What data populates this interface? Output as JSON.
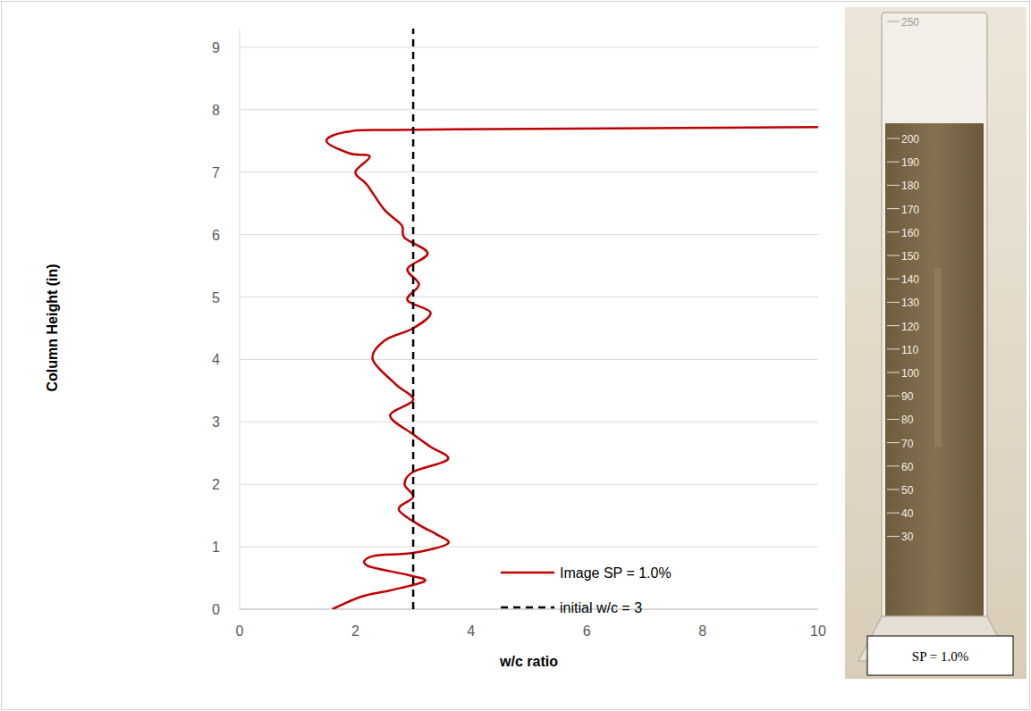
{
  "chart_data": {
    "type": "line",
    "x_label": "w/c ratio",
    "y_label": "Column Height (in)",
    "xlim": [
      0,
      10
    ],
    "xticks": [
      0,
      2,
      4,
      6,
      8,
      10
    ],
    "ylim": [
      0,
      9.3
    ],
    "yticks": [
      0,
      1,
      2,
      3,
      4,
      5,
      6,
      7,
      8,
      9
    ],
    "grid": true,
    "legend": "lower right",
    "series": [
      {
        "name": "Image SP = 1.0%",
        "color": "#c00000",
        "line_style": "solid",
        "x": [
          1.6,
          2.1,
          2.6,
          3.2,
          2.9,
          2.2,
          2.3,
          3.0,
          3.6,
          3.4,
          3.1,
          2.75,
          3.0,
          2.85,
          3.0,
          3.6,
          3.3,
          3.0,
          2.6,
          3.0,
          2.7,
          2.3,
          2.5,
          3.0,
          3.3,
          2.9,
          3.1,
          2.9,
          3.25,
          2.85,
          2.8,
          2.5,
          2.2,
          2.0,
          2.25,
          1.9,
          1.5,
          1.9,
          3.0,
          10
        ],
        "values": [
          0,
          0.2,
          0.3,
          0.45,
          0.55,
          0.7,
          0.85,
          0.9,
          1.05,
          1.2,
          1.35,
          1.6,
          1.8,
          2.0,
          2.2,
          2.4,
          2.6,
          2.8,
          3.1,
          3.35,
          3.6,
          4.0,
          4.3,
          4.5,
          4.75,
          4.95,
          5.2,
          5.45,
          5.7,
          5.95,
          6.15,
          6.4,
          6.8,
          7.0,
          7.25,
          7.3,
          7.5,
          7.65,
          7.68,
          7.72
        ]
      },
      {
        "name": "initial w/c = 3",
        "color": "#000000",
        "line_style": "dashed",
        "x": [
          3,
          3
        ],
        "values": [
          0,
          9.3
        ]
      }
    ]
  },
  "photo": {
    "caption": "SP = 1.0%",
    "graduations": [
      30,
      40,
      50,
      60,
      70,
      80,
      90,
      100,
      110,
      120,
      130,
      140,
      150,
      160,
      170,
      180,
      190,
      200,
      250
    ]
  }
}
